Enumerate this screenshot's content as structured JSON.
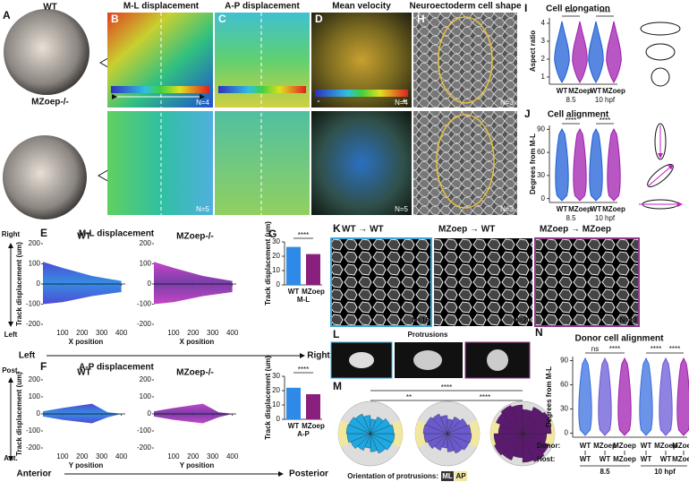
{
  "A": {
    "label": "A",
    "wt": "WT",
    "mut": "MZoep-/-"
  },
  "B": {
    "label": "B",
    "title": "M-L displacement",
    "n_top": "N=4",
    "n_bottom": "N=5"
  },
  "C": {
    "label": "C",
    "title": "A-P displacement"
  },
  "D": {
    "label": "D",
    "title": "Mean velocity",
    "n_top": "N=4",
    "n_bottom": "N=5",
    "minus": "-",
    "plus": "+"
  },
  "H": {
    "label": "H",
    "title": "Neuroectoderm cell shape",
    "n_top": "N=3",
    "n_bottom": "N=3"
  },
  "I": {
    "label": "I",
    "title": "Cell elongation",
    "ylabel": "Aspect ratio",
    "ylim": [
      0.6,
      4.3
    ],
    "yticks": [
      1,
      2,
      3,
      4
    ],
    "groups": [
      "WT",
      "MZoep",
      "WT",
      "MZoep"
    ],
    "stages": [
      "8.5",
      "10 hpf"
    ],
    "sig": [
      "****",
      "****"
    ],
    "colors": [
      "#1f5fd6",
      "#a01fb0"
    ]
  },
  "J": {
    "label": "J",
    "title": "Cell alignment",
    "ylabel": "Degrees from M-L",
    "ylim": [
      -5,
      95
    ],
    "yticks": [
      0,
      30,
      60,
      90
    ],
    "groups": [
      "WT",
      "MZoep",
      "WT",
      "MZoep"
    ],
    "stages": [
      "8.5",
      "10 hpf"
    ],
    "sig": [
      "****",
      "****"
    ]
  },
  "E": {
    "label": "E",
    "title": "M-L displacement",
    "plots": [
      "WT",
      "MZoep-/-"
    ],
    "up": "Right",
    "down": "Left",
    "ylabel": "Track displacement (um)",
    "ylim": [
      -200,
      200
    ],
    "yticks": [
      -200,
      -100,
      0,
      100,
      200
    ],
    "xlim": [
      0,
      420
    ],
    "xticks": [
      100,
      200,
      300,
      400
    ],
    "xlabel": "X position",
    "arrow_left": "Left",
    "arrow_right": "Right"
  },
  "F": {
    "label": "F",
    "title": "A-P displacement",
    "plots": [
      "WT",
      "MZoep-/-"
    ],
    "up": "Post.",
    "down": "Ant.",
    "ylabel": "Track displacement (um)",
    "ylim": [
      -200,
      200
    ],
    "yticks": [
      -200,
      -100,
      0,
      100,
      200
    ],
    "xlim": [
      0,
      420
    ],
    "xticks": [
      100,
      200,
      300,
      400
    ],
    "xlabel": "Y position",
    "arrow_left": "Anterior",
    "arrow_right": "Posterior"
  },
  "G": {
    "label": "G",
    "charts": [
      {
        "type": "bar",
        "ylabel": "Track displacement (um)",
        "ylim": [
          0,
          30
        ],
        "yticks": [
          0,
          10,
          20,
          30
        ],
        "categories": [
          "WT",
          "MZoep"
        ],
        "values": [
          26.5,
          21.5
        ],
        "colors": [
          "#2e8ae6",
          "#8b1f7e"
        ],
        "xlabel": "M-L",
        "sig": "****"
      },
      {
        "type": "bar",
        "ylabel": "Track displacement (um)",
        "ylim": [
          0,
          30
        ],
        "yticks": [
          0,
          10,
          20,
          30
        ],
        "categories": [
          "WT",
          "MZoep"
        ],
        "values": [
          22,
          17.5
        ],
        "colors": [
          "#2e8ae6",
          "#8b1f7e"
        ],
        "xlabel": "A-P",
        "sig": "****"
      }
    ]
  },
  "K": {
    "label": "K",
    "panels": [
      {
        "title": "WT → WT",
        "n": "N=16",
        "color": "#3aa8d8"
      },
      {
        "title": "MZoep → WT",
        "n": "N=20",
        "color": "#ffffff"
      },
      {
        "title": "MZoep → MZoep",
        "n": "N=13",
        "color": "#8e3a86"
      }
    ]
  },
  "L": {
    "label": "L",
    "title": "Protrusions"
  },
  "M": {
    "label": "M",
    "sig": [
      "****",
      "**",
      "****"
    ],
    "caption": "Orientation of protrusions:",
    "keys": [
      "ML",
      "AP"
    ],
    "colors": [
      "#1ea7e0",
      "#6a5acd",
      "#5b1a6e"
    ]
  },
  "N": {
    "label": "N",
    "title": "Donor cell alignment",
    "ylabel": "Degrees from M-L",
    "ylim": [
      -5,
      95
    ],
    "yticks": [
      0,
      30,
      60,
      90
    ],
    "donor_label": "Donor:",
    "host_label": "Host:",
    "donors": [
      "WT",
      "MZoep",
      "MZoep",
      "WT",
      "MZoep",
      "MZoep"
    ],
    "hosts": [
      "WT",
      "WT",
      "MZoep",
      "WT",
      "WT",
      "MZoep"
    ],
    "stages": [
      "8.5",
      "10 hpf"
    ],
    "sig": [
      "ns",
      "****",
      "****",
      "****"
    ],
    "colors": [
      "#3a6fe0",
      "#6a5ad8",
      "#a01fb0"
    ]
  }
}
